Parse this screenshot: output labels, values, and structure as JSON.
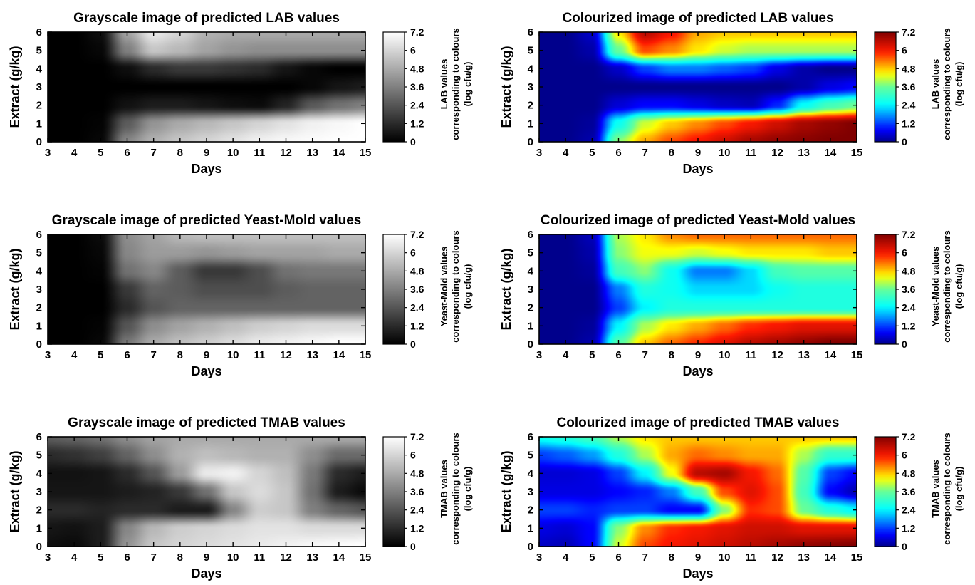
{
  "chart_data": [
    {
      "type": "heatmap",
      "title": "Grayscale image of predicted LAB values",
      "xlabel": "Days",
      "ylabel": "Extract (g/kg)",
      "xlim": [
        3,
        15
      ],
      "ylim": [
        0,
        6
      ],
      "x_ticks": [
        3,
        4,
        5,
        6,
        7,
        8,
        9,
        10,
        11,
        12,
        13,
        14,
        15
      ],
      "y_ticks": [
        0,
        1,
        2,
        3,
        4,
        5,
        6
      ],
      "colormap": "gray",
      "colorbar": {
        "ticks": [
          "7.2",
          "6",
          "4.8",
          "3.6",
          "2.4",
          "1.2",
          "0"
        ],
        "range": [
          0,
          7.2
        ],
        "label_lines": [
          "LAB values",
          "corresponding to colours",
          "(log cfu/g)"
        ]
      },
      "x": [
        3,
        4,
        5,
        6,
        7,
        8,
        9,
        10,
        11,
        12,
        13,
        14,
        15
      ],
      "y": [
        0,
        1,
        2,
        3,
        4,
        5,
        6
      ],
      "z": [
        [
          0,
          0,
          0.2,
          3.8,
          5.0,
          5.6,
          6.0,
          6.4,
          6.8,
          7.0,
          7.1,
          7.2,
          7.2
        ],
        [
          0,
          0,
          0.1,
          2.6,
          4.2,
          4.8,
          5.2,
          5.6,
          6.0,
          6.4,
          6.8,
          7.0,
          7.2
        ],
        [
          0,
          0,
          0,
          0.5,
          0.8,
          0.8,
          0.6,
          0.4,
          0.3,
          1.0,
          2.5,
          3.2,
          3.6
        ],
        [
          0,
          0,
          0,
          0,
          0,
          0,
          0,
          0,
          0,
          0,
          0.2,
          0.6,
          0.8
        ],
        [
          0,
          0,
          0,
          0.4,
          1.2,
          1.6,
          1.6,
          1.4,
          1.2,
          0.6,
          0.2,
          0,
          0
        ],
        [
          0,
          0,
          0.2,
          3.6,
          5.6,
          5.2,
          4.6,
          4.2,
          4.0,
          4.0,
          4.0,
          4.0,
          4.0
        ],
        [
          0,
          0,
          0.4,
          4.6,
          6.6,
          6.0,
          5.0,
          4.8,
          4.8,
          4.8,
          4.8,
          4.8,
          4.8
        ]
      ]
    },
    {
      "type": "heatmap",
      "title": "Colourized image of predicted LAB values",
      "xlabel": "Days",
      "ylabel": "Extract (g/kg)",
      "xlim": [
        3,
        15
      ],
      "ylim": [
        0,
        6
      ],
      "x_ticks": [
        3,
        4,
        5,
        6,
        7,
        8,
        9,
        10,
        11,
        12,
        13,
        14,
        15
      ],
      "y_ticks": [
        0,
        1,
        2,
        3,
        4,
        5,
        6
      ],
      "colormap": "jet",
      "colorbar": {
        "ticks": [
          "7.2",
          "6",
          "4.8",
          "3.6",
          "2.4",
          "1.2",
          "0"
        ],
        "range": [
          0,
          7.2
        ],
        "label_lines": [
          "LAB values",
          "corresponding to colours",
          "(log cfu/g)"
        ]
      },
      "x": [
        3,
        4,
        5,
        6,
        7,
        8,
        9,
        10,
        11,
        12,
        13,
        14,
        15
      ],
      "y": [
        0,
        1,
        2,
        3,
        4,
        5,
        6
      ],
      "z": [
        [
          0,
          0,
          0.2,
          3.8,
          5.0,
          5.6,
          6.0,
          6.4,
          6.8,
          7.0,
          7.1,
          7.2,
          7.2
        ],
        [
          0,
          0,
          0.1,
          2.6,
          4.2,
          4.8,
          5.2,
          5.6,
          6.0,
          6.4,
          6.8,
          7.0,
          7.2
        ],
        [
          0,
          0,
          0,
          0.5,
          0.8,
          0.8,
          0.6,
          0.4,
          0.3,
          1.0,
          2.5,
          3.2,
          3.6
        ],
        [
          0,
          0,
          0,
          0,
          0,
          0,
          0,
          0,
          0,
          0,
          0.2,
          0.6,
          0.8
        ],
        [
          0,
          0,
          0,
          0.4,
          1.2,
          1.6,
          1.6,
          1.4,
          1.2,
          0.6,
          0.2,
          0,
          0
        ],
        [
          0,
          0,
          0.2,
          3.6,
          5.6,
          5.2,
          4.6,
          4.2,
          4.0,
          4.0,
          4.0,
          4.0,
          4.0
        ],
        [
          0,
          0,
          0.4,
          4.6,
          6.6,
          6.0,
          5.0,
          4.8,
          4.8,
          4.8,
          4.8,
          4.8,
          4.8
        ]
      ]
    },
    {
      "type": "heatmap",
      "title": "Grayscale image of predicted Yeast-Mold values",
      "xlabel": "Days",
      "ylabel": "Extract (g/kg)",
      "xlim": [
        3,
        15
      ],
      "ylim": [
        0,
        6
      ],
      "x_ticks": [
        3,
        4,
        5,
        6,
        7,
        8,
        9,
        10,
        11,
        12,
        13,
        14,
        15
      ],
      "y_ticks": [
        0,
        1,
        2,
        3,
        4,
        5,
        6
      ],
      "colormap": "gray",
      "colorbar": {
        "ticks": [
          "7.2",
          "6",
          "4.8",
          "3.6",
          "2.4",
          "1.2",
          "0"
        ],
        "range": [
          0,
          7.2
        ],
        "label_lines": [
          "Yeast-Mold values",
          "corresponding to colours",
          "(log cfu/g)"
        ]
      },
      "x": [
        3,
        4,
        5,
        6,
        7,
        8,
        9,
        10,
        11,
        12,
        13,
        14,
        15
      ],
      "y": [
        0,
        1,
        2,
        3,
        4,
        5,
        6
      ],
      "z": [
        [
          0,
          0,
          0.2,
          3.4,
          4.8,
          5.4,
          5.8,
          6.2,
          6.6,
          6.8,
          7.0,
          7.2,
          7.2
        ],
        [
          0,
          0,
          0.1,
          2.4,
          4.0,
          4.6,
          5.0,
          5.4,
          5.8,
          6.0,
          6.2,
          6.2,
          6.2
        ],
        [
          0,
          0,
          0,
          1.2,
          2.4,
          2.8,
          2.8,
          2.8,
          2.8,
          2.8,
          2.8,
          2.8,
          2.8
        ],
        [
          0,
          0,
          0,
          1.6,
          2.8,
          2.6,
          2.2,
          2.2,
          2.2,
          2.6,
          2.8,
          2.8,
          2.8
        ],
        [
          0,
          0,
          0.1,
          3.2,
          3.8,
          2.6,
          1.6,
          1.6,
          2.2,
          3.2,
          3.4,
          3.4,
          3.4
        ],
        [
          0,
          0,
          0.2,
          3.8,
          4.4,
          4.4,
          4.2,
          4.4,
          4.6,
          4.6,
          4.6,
          4.8,
          4.8
        ],
        [
          0,
          0,
          0.3,
          4.0,
          4.6,
          5.2,
          5.4,
          5.4,
          5.4,
          5.4,
          5.4,
          5.4,
          5.4
        ]
      ]
    },
    {
      "type": "heatmap",
      "title": "Colourized image of predicted Yeast-Mold values",
      "xlabel": "Days",
      "ylabel": "Extract (g/kg)",
      "xlim": [
        3,
        15
      ],
      "ylim": [
        0,
        6
      ],
      "x_ticks": [
        3,
        4,
        5,
        6,
        7,
        8,
        9,
        10,
        11,
        12,
        13,
        14,
        15
      ],
      "y_ticks": [
        0,
        1,
        2,
        3,
        4,
        5,
        6
      ],
      "colormap": "jet",
      "colorbar": {
        "ticks": [
          "7.2",
          "6",
          "4.8",
          "3.6",
          "2.4",
          "1.2",
          "0"
        ],
        "range": [
          0,
          7.2
        ],
        "label_lines": [
          "Yeast-Mold values",
          "corresponding to colours",
          "(log cfu/g)"
        ]
      },
      "x": [
        3,
        4,
        5,
        6,
        7,
        8,
        9,
        10,
        11,
        12,
        13,
        14,
        15
      ],
      "y": [
        0,
        1,
        2,
        3,
        4,
        5,
        6
      ],
      "z": [
        [
          0,
          0,
          0.2,
          3.4,
          4.8,
          5.4,
          5.8,
          6.2,
          6.6,
          6.8,
          7.0,
          7.2,
          7.2
        ],
        [
          0,
          0,
          0.1,
          2.4,
          4.0,
          4.6,
          5.0,
          5.4,
          5.8,
          6.0,
          6.2,
          6.2,
          6.2
        ],
        [
          0,
          0,
          0,
          1.2,
          2.4,
          2.8,
          2.8,
          2.8,
          2.8,
          2.8,
          2.8,
          2.8,
          2.8
        ],
        [
          0,
          0,
          0,
          1.6,
          2.8,
          2.6,
          2.2,
          2.2,
          2.2,
          2.6,
          2.8,
          2.8,
          2.8
        ],
        [
          0,
          0,
          0.1,
          3.2,
          3.8,
          2.6,
          1.6,
          1.6,
          2.2,
          3.2,
          3.4,
          3.4,
          3.4
        ],
        [
          0,
          0,
          0.2,
          3.8,
          4.4,
          4.4,
          4.2,
          4.4,
          4.6,
          4.6,
          4.6,
          4.8,
          4.8
        ],
        [
          0,
          0,
          0.3,
          4.0,
          4.6,
          5.2,
          5.4,
          5.4,
          5.4,
          5.4,
          5.4,
          5.4,
          5.4
        ]
      ]
    },
    {
      "type": "heatmap",
      "title": "Grayscale image of predicted TMAB values",
      "xlabel": "Days",
      "ylabel": "Extract (g/kg)",
      "xlim": [
        3,
        15
      ],
      "ylim": [
        0,
        6
      ],
      "x_ticks": [
        3,
        4,
        5,
        6,
        7,
        8,
        9,
        10,
        11,
        12,
        13,
        14,
        15
      ],
      "y_ticks": [
        0,
        1,
        2,
        3,
        4,
        5,
        6
      ],
      "colormap": "gray",
      "colorbar": {
        "ticks": [
          "7.2",
          "6",
          "4.8",
          "3.6",
          "2.4",
          "1.2",
          "0"
        ],
        "range": [
          0,
          7.2
        ],
        "label_lines": [
          "TMAB values",
          "corresponding to colours",
          "(log cfu/g)"
        ]
      },
      "x": [
        3,
        4,
        5,
        6,
        7,
        8,
        9,
        10,
        11,
        12,
        13,
        14,
        15
      ],
      "y": [
        0,
        1,
        2,
        3,
        4,
        5,
        6
      ],
      "z": [
        [
          0.4,
          0.3,
          0.8,
          4.2,
          5.6,
          6.0,
          6.2,
          6.4,
          6.6,
          6.8,
          7.0,
          7.1,
          7.2
        ],
        [
          0.6,
          0.5,
          0.8,
          3.8,
          5.2,
          5.8,
          6.0,
          6.2,
          6.4,
          6.4,
          6.2,
          6.2,
          6.2
        ],
        [
          1.2,
          1.2,
          1.0,
          1.2,
          1.2,
          0.8,
          0.8,
          3.8,
          5.8,
          5.6,
          3.6,
          2.8,
          2.4
        ],
        [
          0.6,
          0.6,
          0.6,
          0.8,
          1.0,
          1.6,
          3.2,
          5.6,
          6.2,
          5.6,
          3.2,
          0.8,
          0.3
        ],
        [
          0.5,
          0.5,
          0.6,
          1.2,
          2.4,
          4.4,
          6.6,
          6.8,
          6.0,
          5.4,
          3.4,
          1.2,
          0.8
        ],
        [
          1.2,
          1.4,
          1.8,
          2.8,
          4.0,
          5.0,
          5.4,
          5.2,
          5.0,
          5.0,
          4.0,
          3.0,
          3.0
        ],
        [
          2.6,
          2.8,
          3.2,
          4.0,
          4.6,
          4.8,
          4.8,
          4.8,
          4.8,
          4.8,
          4.8,
          4.8,
          4.8
        ]
      ]
    },
    {
      "type": "heatmap",
      "title": "Colourized image of predicted TMAB values",
      "xlabel": "Days",
      "ylabel": "Extract (g/kg)",
      "xlim": [
        3,
        15
      ],
      "ylim": [
        0,
        6
      ],
      "x_ticks": [
        3,
        4,
        5,
        6,
        7,
        8,
        9,
        10,
        11,
        12,
        13,
        14,
        15
      ],
      "y_ticks": [
        0,
        1,
        2,
        3,
        4,
        5,
        6
      ],
      "colormap": "jet",
      "colorbar": {
        "ticks": [
          "7.2",
          "6",
          "4.8",
          "3.6",
          "2.4",
          "1.2",
          "0"
        ],
        "range": [
          0,
          7.2
        ],
        "label_lines": [
          "TMAB values",
          "corresponding to colours",
          "(log cfu/g)"
        ]
      },
      "x": [
        3,
        4,
        5,
        6,
        7,
        8,
        9,
        10,
        11,
        12,
        13,
        14,
        15
      ],
      "y": [
        0,
        1,
        2,
        3,
        4,
        5,
        6
      ],
      "z": [
        [
          0.4,
          0.3,
          0.8,
          4.2,
          5.6,
          6.0,
          6.2,
          6.4,
          6.6,
          6.8,
          7.0,
          7.1,
          7.2
        ],
        [
          0.6,
          0.5,
          0.8,
          3.8,
          5.2,
          5.8,
          6.0,
          6.2,
          6.4,
          6.4,
          6.2,
          6.2,
          6.2
        ],
        [
          1.2,
          1.2,
          1.0,
          1.2,
          1.2,
          0.8,
          0.8,
          3.8,
          5.8,
          5.6,
          3.6,
          2.8,
          2.4
        ],
        [
          0.6,
          0.6,
          0.6,
          0.8,
          1.0,
          1.6,
          3.2,
          5.6,
          6.2,
          5.6,
          3.2,
          0.8,
          0.3
        ],
        [
          0.5,
          0.5,
          0.6,
          1.2,
          2.4,
          4.4,
          6.6,
          6.8,
          6.0,
          5.4,
          3.4,
          1.2,
          0.8
        ],
        [
          1.2,
          1.4,
          1.8,
          2.8,
          4.0,
          5.0,
          5.4,
          5.2,
          5.0,
          5.0,
          4.0,
          3.0,
          3.0
        ],
        [
          2.6,
          2.8,
          3.2,
          4.0,
          4.6,
          4.8,
          4.8,
          4.8,
          4.8,
          4.8,
          4.8,
          4.8,
          4.8
        ]
      ]
    }
  ]
}
